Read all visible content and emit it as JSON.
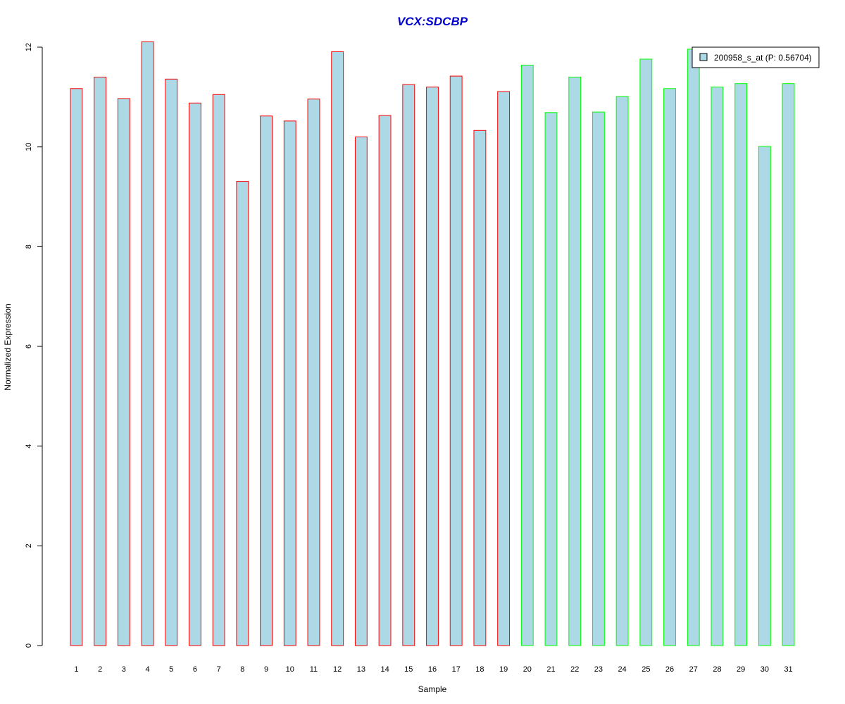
{
  "chart_data": {
    "type": "bar",
    "title": "VCX:SDCBP",
    "xlabel": "Sample",
    "ylabel": "Normalized Expression",
    "ylim": [
      0,
      12
    ],
    "yticks": [
      0,
      2,
      4,
      6,
      8,
      10,
      12
    ],
    "grid": false,
    "categories": [
      "1",
      "2",
      "3",
      "4",
      "5",
      "6",
      "7",
      "8",
      "9",
      "10",
      "11",
      "12",
      "13",
      "14",
      "15",
      "16",
      "17",
      "18",
      "19",
      "20",
      "21",
      "22",
      "23",
      "24",
      "25",
      "26",
      "27",
      "28",
      "29",
      "30",
      "31"
    ],
    "values": [
      11.17,
      11.4,
      10.97,
      12.11,
      11.36,
      10.88,
      11.05,
      9.31,
      10.62,
      10.52,
      10.96,
      11.91,
      10.2,
      10.63,
      11.25,
      11.2,
      11.42,
      10.33,
      11.11,
      11.64,
      10.69,
      11.4,
      10.7,
      11.01,
      11.76,
      11.17,
      11.96,
      11.2,
      11.27,
      10.01,
      11.27
    ],
    "groups": [
      1,
      1,
      1,
      1,
      1,
      1,
      1,
      1,
      1,
      1,
      1,
      1,
      1,
      1,
      1,
      1,
      1,
      1,
      1,
      2,
      2,
      2,
      2,
      2,
      2,
      2,
      2,
      2,
      2,
      2,
      2
    ],
    "series": [
      {
        "name": "200958_s_at (P: 0.56704)",
        "fill": "#add8e6"
      }
    ],
    "group_border_colors": {
      "1": "#ff0000",
      "2": "#00ff00"
    },
    "bar_fill": "#add8e6",
    "legend_position": "top-right"
  }
}
